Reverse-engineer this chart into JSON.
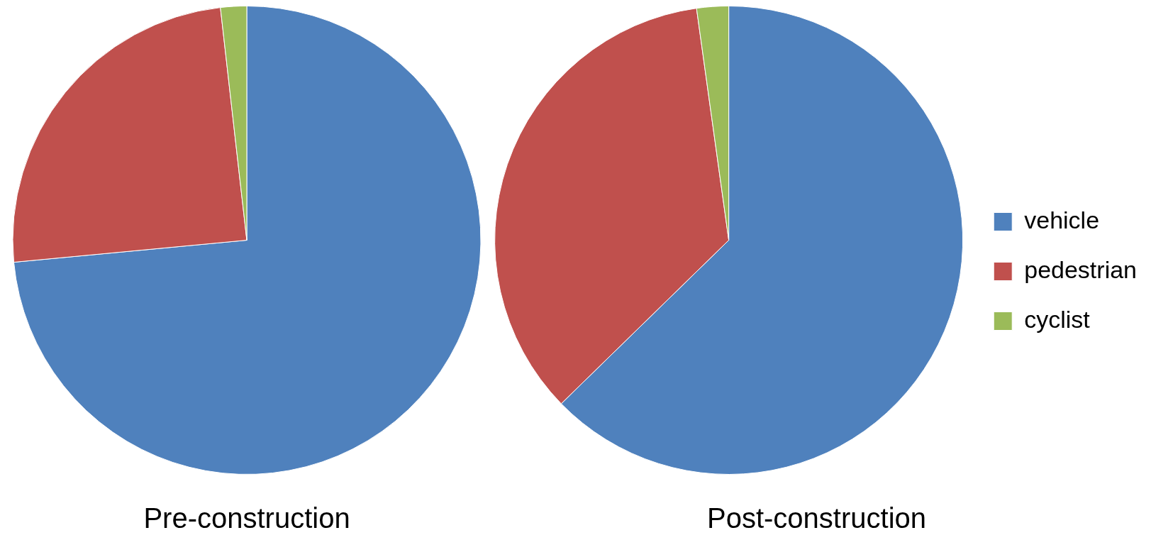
{
  "chart_data": [
    {
      "type": "pie",
      "title": "Pre-construction",
      "categories": [
        null,
        null,
        null
      ],
      "values": [
        73.5,
        24.7,
        1.8
      ],
      "colors": [
        "#4f81bd",
        "#c0504d",
        "#9bbb59"
      ],
      "legend": false
    },
    {
      "type": "pie",
      "title": "Post-construction",
      "categories": [
        "vehicle",
        "pedestrian",
        "cyclist"
      ],
      "values": [
        62.7,
        35.1,
        2.2
      ],
      "colors": [
        "#4f81bd",
        "#c0504d",
        "#9bbb59"
      ],
      "legend": "right"
    }
  ]
}
